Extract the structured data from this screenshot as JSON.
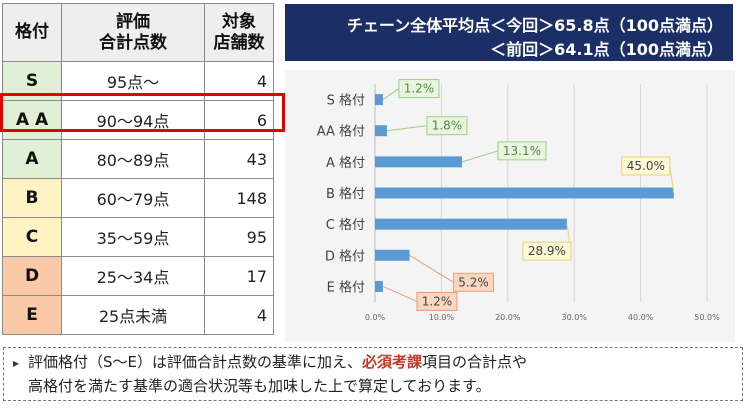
{
  "table": {
    "headers": [
      "格付",
      "評価\n合計点数",
      "対象\n店舗数"
    ],
    "rows": [
      {
        "grade": "S",
        "range": "95点～",
        "count": "4",
        "color": "#dff0d6"
      },
      {
        "grade": "A A",
        "range": "90～94点",
        "count": "6",
        "color": "#dff0d6"
      },
      {
        "grade": "A",
        "range": "80～89点",
        "count": "43",
        "color": "#dff0d6"
      },
      {
        "grade": "B",
        "range": "60～79点",
        "count": "148",
        "color": "#fff3c4"
      },
      {
        "grade": "C",
        "range": "35～59点",
        "count": "95",
        "color": "#fff3c4"
      },
      {
        "grade": "D",
        "range": "25～34点",
        "count": "17",
        "color": "#f9c9a8"
      },
      {
        "grade": "E",
        "range": "25点未満",
        "count": "4",
        "color": "#f9c9a8"
      }
    ]
  },
  "banner": {
    "line1": "チェーン全体平均点＜今回＞65.8点（100点満点）",
    "line2": "＜前回＞64.1点（100点満点）"
  },
  "chart_data": {
    "type": "bar",
    "orientation": "horizontal",
    "categories": [
      "S 格付",
      "AA 格付",
      "A 格付",
      "B 格付",
      "C 格付",
      "D 格付",
      "E 格付"
    ],
    "values": [
      1.2,
      1.8,
      13.1,
      45.0,
      28.9,
      5.2,
      1.2
    ],
    "labels": [
      "1.2%",
      "1.8%",
      "13.1%",
      "45.0%",
      "28.9%",
      "5.2%",
      "1.2%"
    ],
    "label_colors": [
      "green",
      "green",
      "green",
      "yellow",
      "yellow",
      "orange",
      "orange"
    ],
    "xlim": [
      0,
      50
    ],
    "xticks": [
      "0.0%",
      "10.0%",
      "20.0%",
      "30.0%",
      "40.0%",
      "50.0%"
    ],
    "bar_color": "#5b9bd5",
    "title": "",
    "xlabel": "",
    "ylabel": ""
  },
  "note": {
    "bullet": "▸",
    "pre": "評価格付（S～E）は評価合計点数の基準に加え、",
    "emphasis": "必須考課",
    "post": "項目の合計点や",
    "line2": "高格付を満たす基準の適合状況等も加味した上で算定しております。"
  }
}
